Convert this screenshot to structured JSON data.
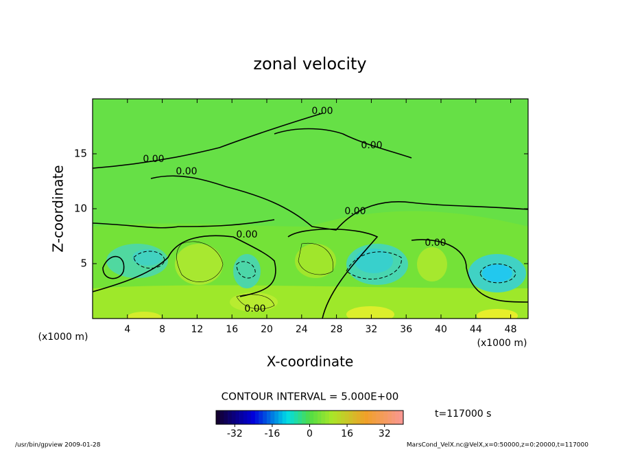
{
  "chart_data": {
    "type": "contour",
    "title": "zonal velocity",
    "xlabel": "X-coordinate",
    "ylabel": "Z-coordinate",
    "xunit": "(x1000 m)",
    "xlim": [
      0,
      50
    ],
    "xticks": [
      4,
      8,
      12,
      16,
      20,
      24,
      28,
      32,
      36,
      40,
      44,
      48
    ],
    "ylim": [
      0,
      20
    ],
    "yticks": [
      5,
      10,
      15
    ],
    "contour_labels": [
      "0.00",
      "0.00",
      "0.00",
      "0.00",
      "0.00",
      "0.00",
      "0.00",
      "0.00"
    ],
    "contour_interval": "CONTOUR INTERVAL = 5.000E+00",
    "time": "t=117000 s",
    "colorbar": {
      "lim": [
        -40,
        40
      ],
      "ticks": [
        -32,
        -16,
        0,
        16,
        32
      ]
    },
    "footer_left": "/usr/bin/gpview  2009-01-28",
    "footer_right": "MarsCond_VelX.nc@VelX,x=0:50000,z=0:20000,t=117000"
  }
}
